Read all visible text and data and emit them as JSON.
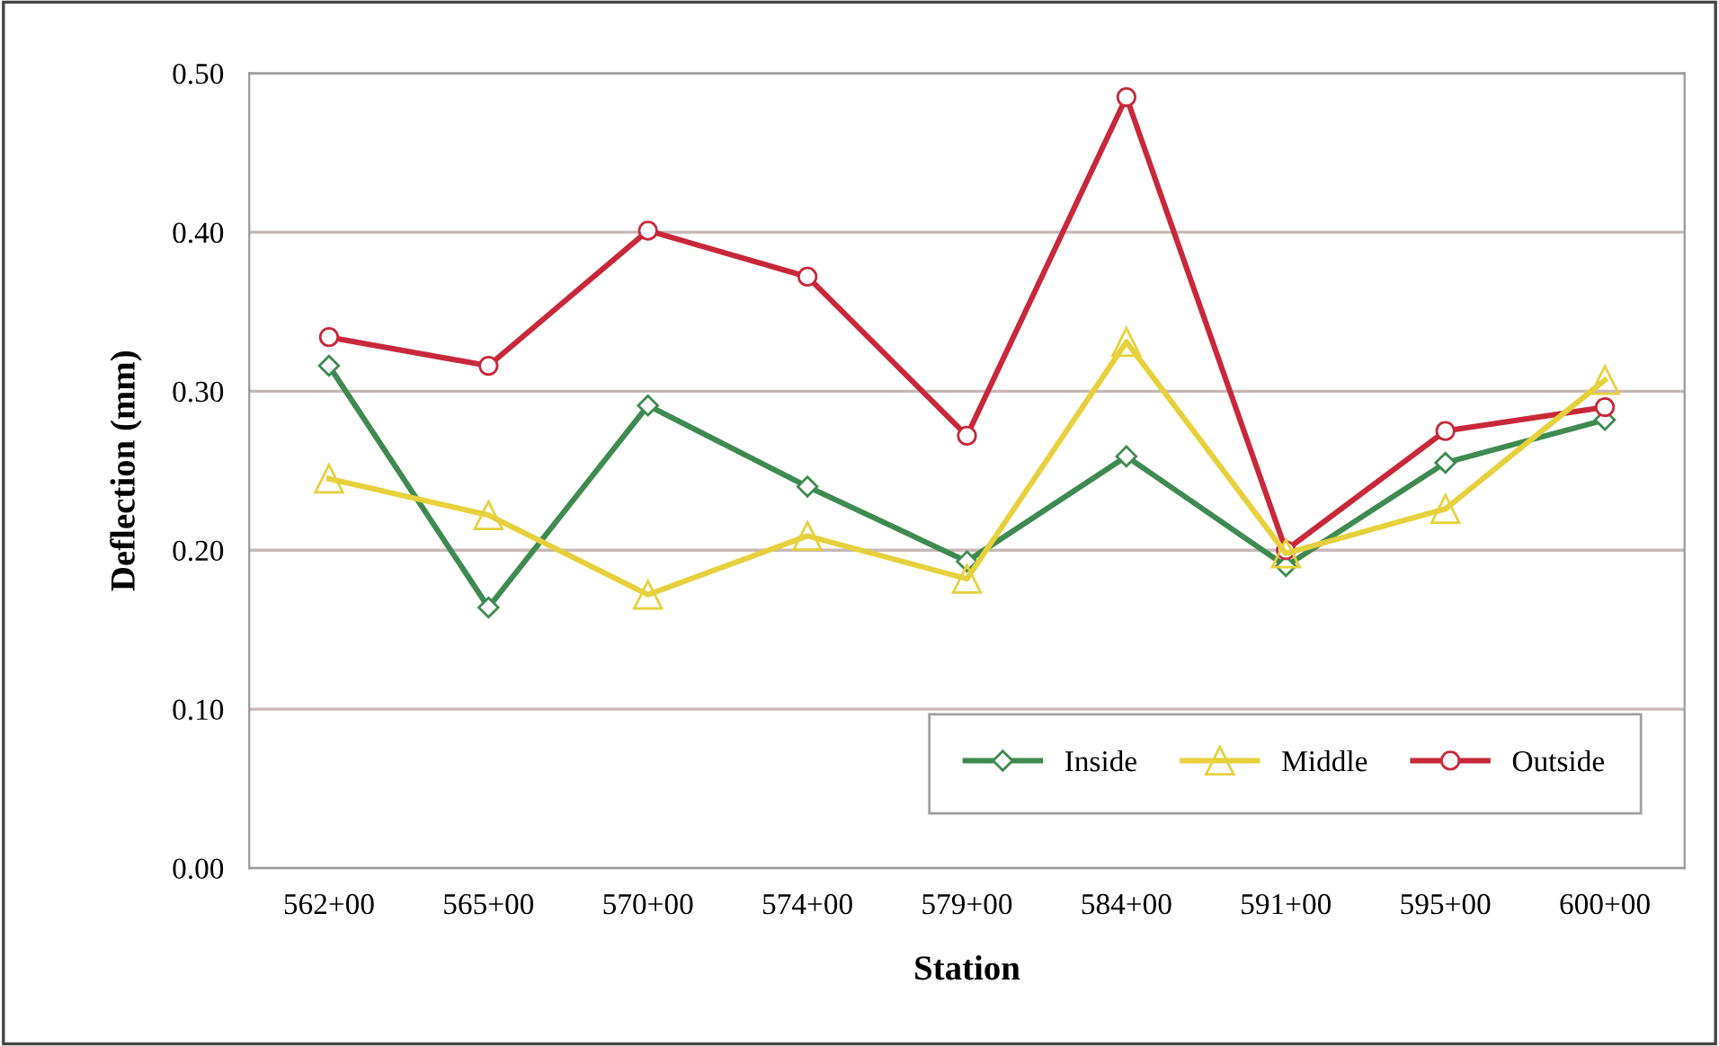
{
  "chart_data": {
    "type": "line",
    "xlabel": "Station",
    "ylabel": "Deflection (mm)",
    "categories": [
      "562+00",
      "565+00",
      "570+00",
      "574+00",
      "579+00",
      "584+00",
      "591+00",
      "595+00",
      "600+00"
    ],
    "series": [
      {
        "name": "Inside",
        "color": "#3e8a50",
        "marker": "diamond",
        "values": [
          0.316,
          0.164,
          0.291,
          0.24,
          0.193,
          0.259,
          0.19,
          0.255,
          0.282
        ]
      },
      {
        "name": "Middle",
        "color": "#e6d03c",
        "marker": "triangle",
        "values": [
          0.245,
          0.222,
          0.172,
          0.209,
          0.182,
          0.331,
          0.198,
          0.226,
          0.307
        ]
      },
      {
        "name": "Outside",
        "color": "#c8283a",
        "marker": "circle",
        "values": [
          0.334,
          0.316,
          0.401,
          0.372,
          0.272,
          0.485,
          0.2,
          0.275,
          0.29
        ]
      }
    ],
    "ylim": [
      0,
      0.5
    ],
    "yticks": [
      {
        "value": 0,
        "label": "0.00"
      },
      {
        "value": 0.1,
        "label": "0.10"
      },
      {
        "value": 0.2,
        "label": "0.20"
      },
      {
        "value": 0.3,
        "label": "0.30"
      },
      {
        "value": 0.4,
        "label": "0.40"
      },
      {
        "value": 0.5,
        "label": "0.50"
      }
    ],
    "grid": "y",
    "legend": "bottom right",
    "line_style": "solid"
  }
}
